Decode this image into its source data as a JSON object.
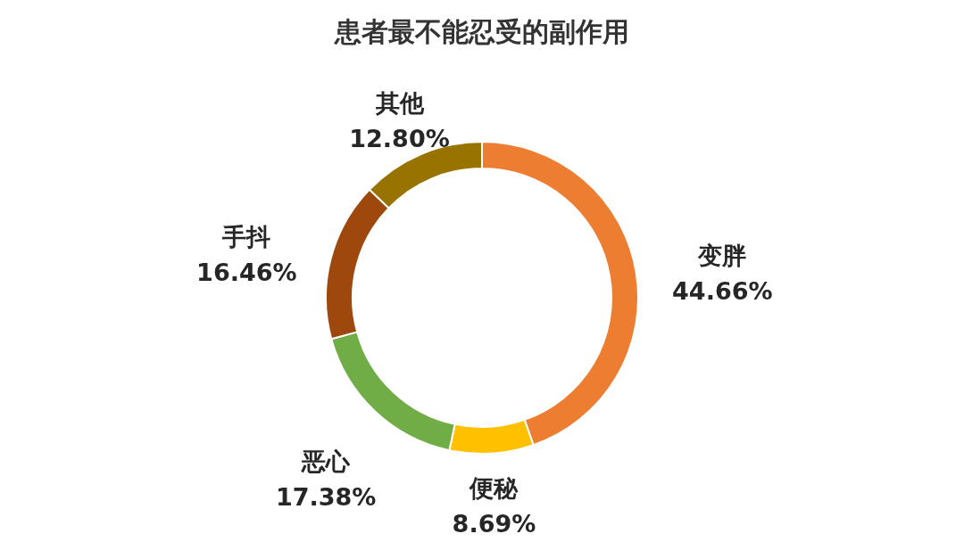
{
  "chart_data": {
    "type": "donut",
    "title": "患者最不能忍受的副作用",
    "categories": [
      "变胖",
      "便秘",
      "恶心",
      "手抖",
      "其他"
    ],
    "values": [
      44.66,
      8.69,
      17.38,
      16.46,
      12.8
    ],
    "colors": [
      "#ed7d31",
      "#ffc000",
      "#70ad47",
      "#9e480e",
      "#997300"
    ],
    "value_labels": [
      "44.66%",
      "8.69%",
      "17.38%",
      "16.46%",
      "12.80%"
    ],
    "legend": false
  }
}
